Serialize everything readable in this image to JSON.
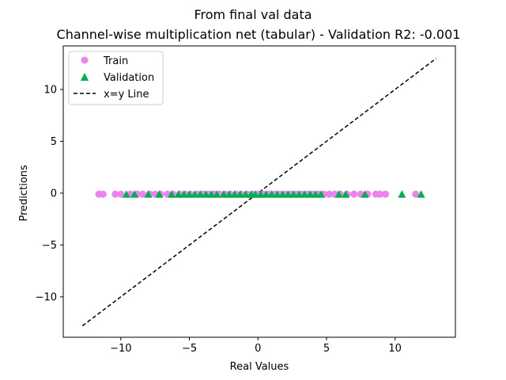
{
  "chart_data": {
    "type": "scatter",
    "suptitle": "From final val data",
    "title": "Channel-wise multiplication net (tabular) - Validation R2: -0.001",
    "xlabel": "Real Values",
    "ylabel": "Predictions",
    "xlim": [
      -14.2,
      14.4
    ],
    "ylim": [
      -13.9,
      14.2
    ],
    "xticks": [
      -10,
      -5,
      0,
      5,
      10
    ],
    "yticks": [
      -10,
      -5,
      0,
      5,
      10
    ],
    "legend_position": "upper-left",
    "series": [
      {
        "name": "Train",
        "marker": "circle",
        "color": "#ee82ee",
        "points": [
          [
            -11.6,
            -0.1
          ],
          [
            -11.3,
            -0.1
          ],
          [
            -10.4,
            -0.1
          ],
          [
            -10.0,
            -0.1
          ],
          [
            -9.3,
            -0.1
          ],
          [
            -8.8,
            -0.1
          ],
          [
            -8.4,
            -0.1
          ],
          [
            -7.9,
            -0.1
          ],
          [
            -7.5,
            -0.1
          ],
          [
            -7.1,
            -0.1
          ],
          [
            -6.6,
            -0.1
          ],
          [
            -6.2,
            -0.1
          ],
          [
            -5.7,
            -0.1
          ],
          [
            -5.3,
            -0.1
          ],
          [
            -4.9,
            -0.1
          ],
          [
            -4.4,
            -0.1
          ],
          [
            -4.0,
            -0.1
          ],
          [
            -3.6,
            -0.1
          ],
          [
            -3.2,
            -0.1
          ],
          [
            -2.8,
            -0.1
          ],
          [
            -2.4,
            -0.1
          ],
          [
            -2.0,
            -0.1
          ],
          [
            -1.6,
            -0.1
          ],
          [
            -1.2,
            -0.1
          ],
          [
            -0.8,
            -0.1
          ],
          [
            -0.4,
            -0.1
          ],
          [
            0.0,
            -0.1
          ],
          [
            0.4,
            -0.1
          ],
          [
            0.8,
            -0.1
          ],
          [
            1.2,
            -0.1
          ],
          [
            1.6,
            -0.1
          ],
          [
            2.0,
            -0.1
          ],
          [
            2.4,
            -0.1
          ],
          [
            2.8,
            -0.1
          ],
          [
            3.2,
            -0.1
          ],
          [
            3.6,
            -0.1
          ],
          [
            4.0,
            -0.1
          ],
          [
            4.4,
            -0.1
          ],
          [
            4.8,
            -0.1
          ],
          [
            5.2,
            -0.1
          ],
          [
            5.6,
            -0.1
          ],
          [
            6.0,
            -0.1
          ],
          [
            6.5,
            -0.1
          ],
          [
            7.0,
            -0.1
          ],
          [
            7.5,
            -0.1
          ],
          [
            8.0,
            -0.1
          ],
          [
            8.6,
            -0.1
          ],
          [
            8.9,
            -0.1
          ],
          [
            9.3,
            -0.1
          ],
          [
            11.5,
            -0.1
          ]
        ]
      },
      {
        "name": "Validation",
        "marker": "triangle",
        "color": "#00b050",
        "points": [
          [
            -9.6,
            -0.1
          ],
          [
            -9.0,
            -0.1
          ],
          [
            -8.0,
            -0.1
          ],
          [
            -7.2,
            -0.1
          ],
          [
            -6.3,
            -0.1
          ],
          [
            -5.8,
            -0.1
          ],
          [
            -5.4,
            -0.1
          ],
          [
            -5.0,
            -0.1
          ],
          [
            -4.6,
            -0.1
          ],
          [
            -4.2,
            -0.1
          ],
          [
            -3.8,
            -0.1
          ],
          [
            -3.4,
            -0.1
          ],
          [
            -3.0,
            -0.1
          ],
          [
            -2.5,
            -0.1
          ],
          [
            -2.1,
            -0.1
          ],
          [
            -1.7,
            -0.1
          ],
          [
            -1.3,
            -0.1
          ],
          [
            -0.9,
            -0.1
          ],
          [
            -0.5,
            -0.1
          ],
          [
            -0.2,
            -0.1
          ],
          [
            0.2,
            -0.1
          ],
          [
            0.6,
            -0.1
          ],
          [
            1.0,
            -0.1
          ],
          [
            1.4,
            -0.1
          ],
          [
            1.8,
            -0.1
          ],
          [
            2.2,
            -0.1
          ],
          [
            2.6,
            -0.1
          ],
          [
            3.0,
            -0.1
          ],
          [
            3.4,
            -0.1
          ],
          [
            3.8,
            -0.1
          ],
          [
            4.2,
            -0.1
          ],
          [
            4.6,
            -0.1
          ],
          [
            5.9,
            -0.1
          ],
          [
            6.4,
            -0.1
          ],
          [
            7.8,
            -0.1
          ],
          [
            10.5,
            -0.1
          ],
          [
            11.9,
            -0.1
          ]
        ]
      },
      {
        "name": "x=y Line",
        "marker": "dashed-line",
        "color": "#000000",
        "points": [
          [
            -12.8,
            -12.8
          ],
          [
            13.0,
            13.0
          ]
        ]
      }
    ]
  }
}
